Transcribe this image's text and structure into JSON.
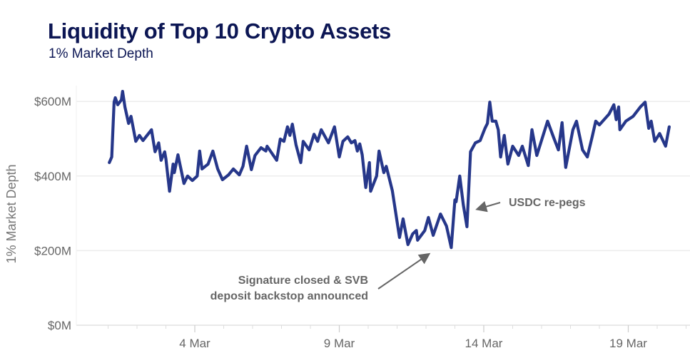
{
  "chart_data": {
    "type": "line",
    "title": "Liquidity of Top 10 Crypto Assets",
    "subtitle": "1% Market Depth",
    "ylabel": "1% Market Depth",
    "xlabel": "",
    "ylim": [
      0,
      600
    ],
    "yticks": [
      0,
      200,
      400,
      600
    ],
    "ytick_labels": [
      "$0M",
      "$200M",
      "$400M",
      "$600M"
    ],
    "xticks": [
      "4 Mar",
      "9 Mar",
      "14 Mar",
      "19 Mar"
    ],
    "xlim": [
      "1 Mar",
      "21 Mar"
    ],
    "grid": "horizontal",
    "line_color": "#26378a",
    "points": [
      [
        "1 Mar 01:00",
        436
      ],
      [
        "1 Mar 03:00",
        451
      ],
      [
        "1 Mar 05:00",
        598
      ],
      [
        "1 Mar 06:00",
        610
      ],
      [
        "1 Mar 08:00",
        591
      ],
      [
        "1 Mar 11:00",
        604
      ],
      [
        "1 Mar 12:00",
        627
      ],
      [
        "1 Mar 14:00",
        585
      ],
      [
        "1 Mar 17:00",
        541
      ],
      [
        "1 Mar 19:00",
        560
      ],
      [
        "1 Mar 23:00",
        493
      ],
      [
        "2 Mar 02:00",
        509
      ],
      [
        "2 Mar 05:00",
        495
      ],
      [
        "2 Mar 12:00",
        524
      ],
      [
        "2 Mar 15:00",
        465
      ],
      [
        "2 Mar 18:00",
        489
      ],
      [
        "2 Mar 20:00",
        442
      ],
      [
        "2 Mar 23:00",
        465
      ],
      [
        "3 Mar 00:00",
        446
      ],
      [
        "3 Mar 03:00",
        359
      ],
      [
        "3 Mar 06:00",
        432
      ],
      [
        "3 Mar 07:00",
        409
      ],
      [
        "3 Mar 10:00",
        457
      ],
      [
        "3 Mar 15:00",
        380
      ],
      [
        "3 Mar 18:00",
        400
      ],
      [
        "3 Mar 22:00",
        388
      ],
      [
        "4 Mar 02:00",
        400
      ],
      [
        "4 Mar 04:00",
        467
      ],
      [
        "4 Mar 06:00",
        419
      ],
      [
        "4 Mar 11:00",
        432
      ],
      [
        "4 Mar 15:00",
        467
      ],
      [
        "4 Mar 19:00",
        419
      ],
      [
        "4 Mar 23:00",
        390
      ],
      [
        "5 Mar 04:00",
        403
      ],
      [
        "5 Mar 08:00",
        419
      ],
      [
        "5 Mar 13:00",
        403
      ],
      [
        "5 Mar 16:00",
        426
      ],
      [
        "5 Mar 19:00",
        480
      ],
      [
        "5 Mar 23:00",
        417
      ],
      [
        "6 Mar 02:00",
        455
      ],
      [
        "6 Mar 07:00",
        476
      ],
      [
        "6 Mar 11:00",
        467
      ],
      [
        "6 Mar 12:00",
        480
      ],
      [
        "6 Mar 20:00",
        442
      ],
      [
        "6 Mar 23:00",
        499
      ],
      [
        "7 Mar 02:00",
        493
      ],
      [
        "7 Mar 05:00",
        532
      ],
      [
        "7 Mar 07:00",
        509
      ],
      [
        "7 Mar 09:00",
        539
      ],
      [
        "7 Mar 12:00",
        484
      ],
      [
        "7 Mar 16:00",
        436
      ],
      [
        "7 Mar 18:00",
        493
      ],
      [
        "7 Mar 23:00",
        470
      ],
      [
        "8 Mar 03:00",
        512
      ],
      [
        "8 Mar 06:00",
        493
      ],
      [
        "8 Mar 09:00",
        524
      ],
      [
        "8 Mar 15:00",
        489
      ],
      [
        "8 Mar 20:00",
        532
      ],
      [
        "9 Mar 00:00",
        451
      ],
      [
        "9 Mar 03:00",
        493
      ],
      [
        "9 Mar 07:00",
        505
      ],
      [
        "9 Mar 10:00",
        489
      ],
      [
        "9 Mar 13:00",
        495
      ],
      [
        "9 Mar 15:00",
        467
      ],
      [
        "9 Mar 17:00",
        486
      ],
      [
        "9 Mar 19:00",
        457
      ],
      [
        "9 Mar 22:00",
        369
      ],
      [
        "10 Mar 01:00",
        436
      ],
      [
        "10 Mar 02:00",
        359
      ],
      [
        "10 Mar 07:00",
        400
      ],
      [
        "10 Mar 09:00",
        467
      ],
      [
        "10 Mar 13:00",
        409
      ],
      [
        "10 Mar 15:00",
        426
      ],
      [
        "10 Mar 20:00",
        361
      ],
      [
        "11 Mar 02:00",
        235
      ],
      [
        "11 Mar 05:00",
        285
      ],
      [
        "11 Mar 09:00",
        216
      ],
      [
        "11 Mar 13:00",
        245
      ],
      [
        "11 Mar 16:00",
        254
      ],
      [
        "11 Mar 17:00",
        228
      ],
      [
        "11 Mar 23:00",
        254
      ],
      [
        "12 Mar 02:00",
        289
      ],
      [
        "12 Mar 06:00",
        241
      ],
      [
        "12 Mar 12:00",
        298
      ],
      [
        "12 Mar 17:00",
        266
      ],
      [
        "12 Mar 21:00",
        208
      ],
      [
        "13 Mar 00:00",
        336
      ],
      [
        "13 Mar 01:00",
        331
      ],
      [
        "13 Mar 04:00",
        400
      ],
      [
        "13 Mar 07:00",
        323
      ],
      [
        "13 Mar 10:00",
        264
      ],
      [
        "13 Mar 13:00",
        465
      ],
      [
        "13 Mar 17:00",
        489
      ],
      [
        "13 Mar 21:00",
        495
      ],
      [
        "14 Mar 01:00",
        528
      ],
      [
        "14 Mar 03:00",
        541
      ],
      [
        "14 Mar 05:00",
        598
      ],
      [
        "14 Mar 07:00",
        547
      ],
      [
        "14 Mar 10:00",
        547
      ],
      [
        "14 Mar 12:00",
        524
      ],
      [
        "14 Mar 14:00",
        451
      ],
      [
        "14 Mar 17:00",
        509
      ],
      [
        "14 Mar 20:00",
        432
      ],
      [
        "15 Mar 00:00",
        480
      ],
      [
        "15 Mar 05:00",
        455
      ],
      [
        "15 Mar 08:00",
        480
      ],
      [
        "15 Mar 13:00",
        428
      ],
      [
        "15 Mar 16:00",
        524
      ],
      [
        "15 Mar 20:00",
        455
      ],
      [
        "16 Mar 05:00",
        547
      ],
      [
        "16 Mar 10:00",
        503
      ],
      [
        "16 Mar 14:00",
        470
      ],
      [
        "16 Mar 17:00",
        543
      ],
      [
        "16 Mar 20:00",
        423
      ],
      [
        "17 Mar 02:00",
        524
      ],
      [
        "17 Mar 05:00",
        547
      ],
      [
        "17 Mar 10:00",
        470
      ],
      [
        "17 Mar 14:00",
        451
      ],
      [
        "17 Mar 18:00",
        505
      ],
      [
        "17 Mar 21:00",
        547
      ],
      [
        "18 Mar 00:00",
        537
      ],
      [
        "18 Mar 08:00",
        566
      ],
      [
        "18 Mar 12:00",
        591
      ],
      [
        "18 Mar 14:00",
        551
      ],
      [
        "18 Mar 16:00",
        585
      ],
      [
        "18 Mar 17:00",
        524
      ],
      [
        "18 Mar 22:00",
        547
      ],
      [
        "19 Mar 04:00",
        560
      ],
      [
        "19 Mar 10:00",
        585
      ],
      [
        "19 Mar 14:00",
        598
      ],
      [
        "19 Mar 17:00",
        528
      ],
      [
        "19 Mar 19:00",
        547
      ],
      [
        "19 Mar 22:00",
        493
      ],
      [
        "20 Mar 02:00",
        514
      ],
      [
        "20 Mar 07:00",
        480
      ],
      [
        "20 Mar 10:00",
        532
      ]
    ],
    "annotations": [
      {
        "lines": [
          "Signature closed & SVB",
          "deposit backstop announced"
        ],
        "target": "12 Mar 12:00"
      },
      {
        "lines": [
          "USDC re-pegs"
        ],
        "target": "13 Mar 13:00"
      }
    ]
  }
}
